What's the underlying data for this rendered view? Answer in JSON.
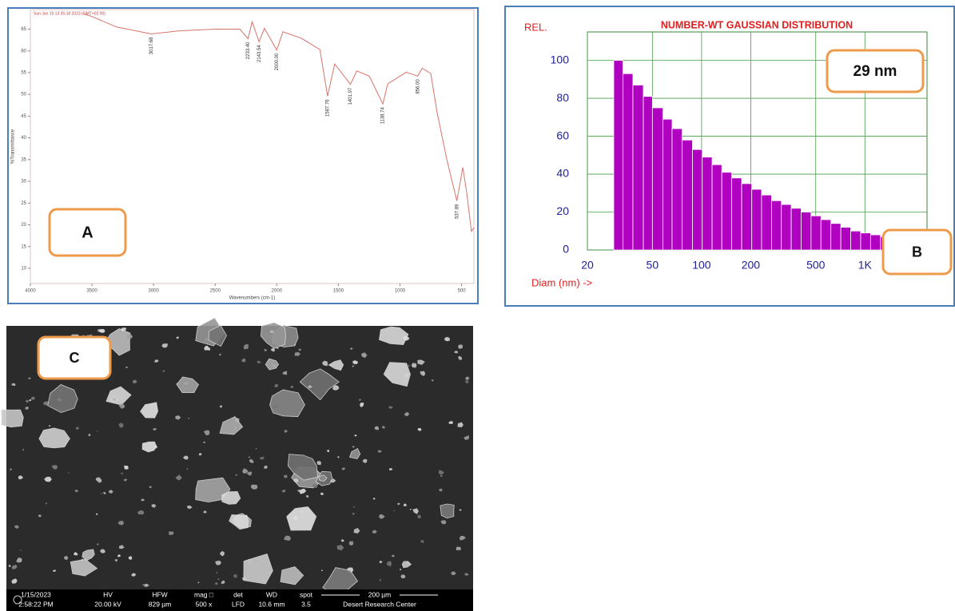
{
  "chart_data": [
    {
      "type": "line",
      "panel_label": "A",
      "header_text": "Sun Jan 15 13:35:18 2023 (GMT+02:00)",
      "x_label": "Wavenumbers (cm-1)",
      "y_label": "%Transmittance",
      "x": [
        3566,
        3500,
        3300,
        3017.68,
        2800,
        2500,
        2300,
        2233.4,
        2200,
        2143.54,
        2100,
        2000,
        1950,
        1800,
        1650,
        1587.76,
        1530,
        1401.97,
        1350,
        1250,
        1138.74,
        1100,
        950,
        856,
        820,
        750,
        700,
        620,
        537.89,
        490,
        460,
        420,
        400
      ],
      "values": [
        68.5,
        67.9,
        65.5,
        63.9,
        64.6,
        65,
        65,
        62.8,
        66.7,
        62.1,
        65.2,
        60.2,
        64.4,
        62.9,
        60.3,
        49.6,
        57,
        52.3,
        55.4,
        54.2,
        47.8,
        52.4,
        55.1,
        54.2,
        56,
        54.8,
        46,
        35,
        25.5,
        33.2,
        27.7,
        18.5,
        19.4
      ],
      "color": "#d9736b",
      "annotations": [
        {
          "label": "3017.68",
          "x": 3017.68,
          "y": 63.9
        },
        {
          "label": "2233.40",
          "x": 2233.4,
          "y": 62.8
        },
        {
          "label": "2143.54",
          "x": 2143.54,
          "y": 62.1
        },
        {
          "label": "2000.00",
          "x": 2000,
          "y": 60.2
        },
        {
          "label": "1587.76",
          "x": 1587.76,
          "y": 49.6
        },
        {
          "label": "1401.97",
          "x": 1401.97,
          "y": 52.3
        },
        {
          "label": "1138.74",
          "x": 1138.74,
          "y": 47.8
        },
        {
          "label": "856.00",
          "x": 856,
          "y": 54.2
        },
        {
          "label": "537.89",
          "x": 537.89,
          "y": 25.5
        }
      ],
      "xlim": [
        4000,
        400
      ],
      "xticks": [
        4000,
        3500,
        3000,
        2500,
        2000,
        1500,
        1000,
        500
      ],
      "ylim": [
        6.5,
        69.5
      ],
      "yticks": [
        10,
        15,
        20,
        25,
        30,
        35,
        40,
        45,
        50,
        55,
        60,
        65
      ]
    },
    {
      "type": "histogram",
      "panel_label": "B",
      "title": "NUMBER-WT GAUSSIAN DISTRIBUTION",
      "y_label": "REL.",
      "x_label": "Diam (nm) ->",
      "annotation": "29 nm",
      "log_x": true,
      "grid": true,
      "color": "#b000c0",
      "bins": [
        29,
        33,
        38,
        44,
        50,
        58,
        66,
        76,
        88,
        101,
        116,
        133,
        153,
        176,
        203,
        233,
        268,
        308,
        354,
        407,
        468,
        538,
        619,
        712,
        819,
        942,
        1083,
        1245,
        1432
      ],
      "values": [
        100,
        93,
        87,
        81,
        75,
        69,
        64,
        58,
        53,
        49,
        45,
        41,
        38,
        35,
        32,
        29,
        26,
        24,
        22,
        20,
        18,
        16,
        14,
        12,
        10,
        9,
        8,
        7
      ],
      "xlim": [
        20,
        2400
      ],
      "xticks": [
        20,
        50,
        100,
        200,
        500,
        {
          "value": 1000,
          "label": "1K"
        }
      ],
      "ylim": [
        0,
        115
      ],
      "yticks": [
        0,
        20,
        40,
        60,
        80,
        100
      ]
    }
  ],
  "sem": {
    "panel_label": "C",
    "info": [
      [
        "1/15/2023",
        "2:58:22 PM"
      ],
      [
        "HV",
        "20.00 kV"
      ],
      [
        "HFW",
        "829 µm"
      ],
      [
        "mag □",
        "500 x"
      ],
      [
        "det",
        "LFD"
      ],
      [
        "WD",
        "10.6 mm"
      ],
      [
        "spot",
        "3.5"
      ]
    ],
    "scale": "200 µm",
    "lab": "Desert Research Center"
  }
}
